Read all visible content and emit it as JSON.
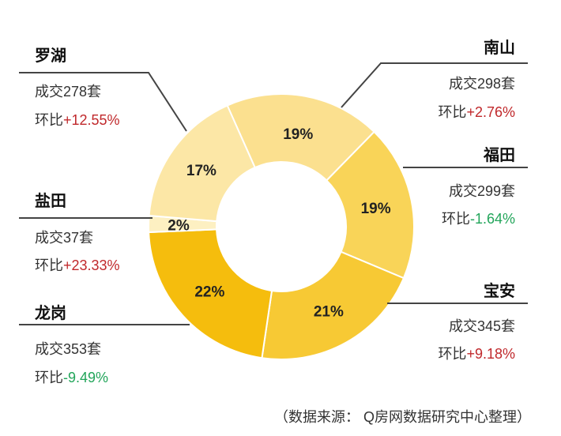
{
  "chart_data": {
    "type": "pie",
    "donut": true,
    "slices": [
      {
        "label": "南山",
        "percent": 19,
        "volume_label": "成交",
        "volume": "298套",
        "mom_label": "环比",
        "mom": "+2.76%",
        "trend": "up",
        "color": "#fbe08f"
      },
      {
        "label": "福田",
        "percent": 19,
        "volume_label": "成交",
        "volume": "299套",
        "mom_label": "环比",
        "mom": "-1.64%",
        "trend": "down",
        "color": "#f9d458"
      },
      {
        "label": "宝安",
        "percent": 21,
        "volume_label": "成交",
        "volume": "345套",
        "mom_label": "环比",
        "mom": "+9.18%",
        "trend": "up",
        "color": "#f7c934"
      },
      {
        "label": "龙岗",
        "percent": 22,
        "volume_label": "成交",
        "volume": "353套",
        "mom_label": "环比",
        "mom": "-9.49%",
        "trend": "down",
        "color": "#f5bd0d"
      },
      {
        "label": "盐田",
        "percent": 2,
        "volume_label": "成交",
        "volume": "37套",
        "mom_label": "环比",
        "mom": "+23.33%",
        "trend": "up",
        "color": "#fdf0c2"
      },
      {
        "label": "罗湖",
        "percent": 17,
        "volume_label": "成交",
        "volume": "278套",
        "mom_label": "环比",
        "mom": "+12.55%",
        "trend": "up",
        "color": "#fce7a6"
      }
    ],
    "slice_labels": [
      "19%",
      "19%",
      "21%",
      "22%",
      "2%",
      "17%"
    ]
  },
  "source": "（数据来源： Q房网数据研究中心整理）"
}
